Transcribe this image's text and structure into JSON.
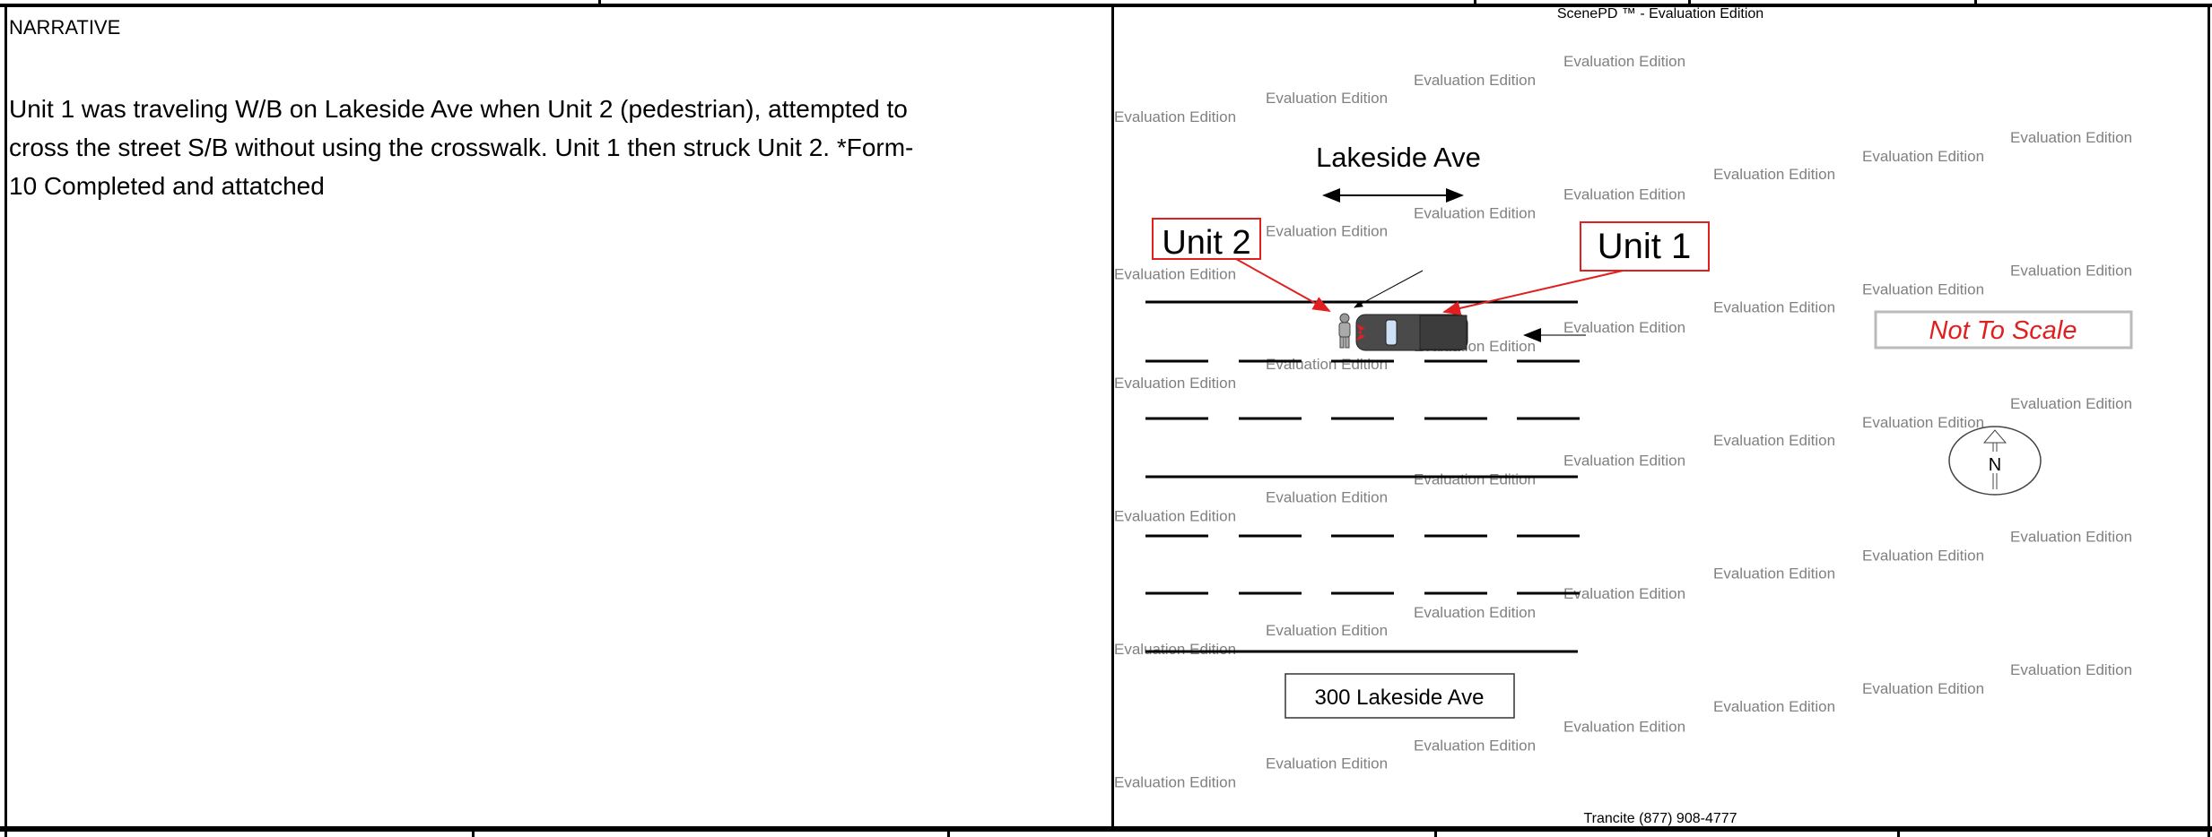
{
  "narrative": {
    "heading": "NARRATIVE",
    "lines": [
      "Unit 1 was traveling W/B on Lakeside Ave when Unit 2 (pedestrian), attempted to",
      "cross the street S/B without using the crosswalk. Unit 1 then struck Unit 2.   *Form-",
      "10 Completed and attatched"
    ]
  },
  "diagram": {
    "header": "ScenePD ™ - Evaluation Edition",
    "footer": "Trancite (877) 908-4777",
    "street_label": "Lakeside Ave",
    "address_label": "300 Lakeside Ave",
    "unit1_label": "Unit 1",
    "unit2_label": "Unit 2",
    "scale_note": "Not To Scale",
    "north_label": "N",
    "watermark": "Evaluation Edition",
    "colors": {
      "callout": "#e02020",
      "watermark": "#808080",
      "vehicle": "#4a4a4a"
    }
  }
}
